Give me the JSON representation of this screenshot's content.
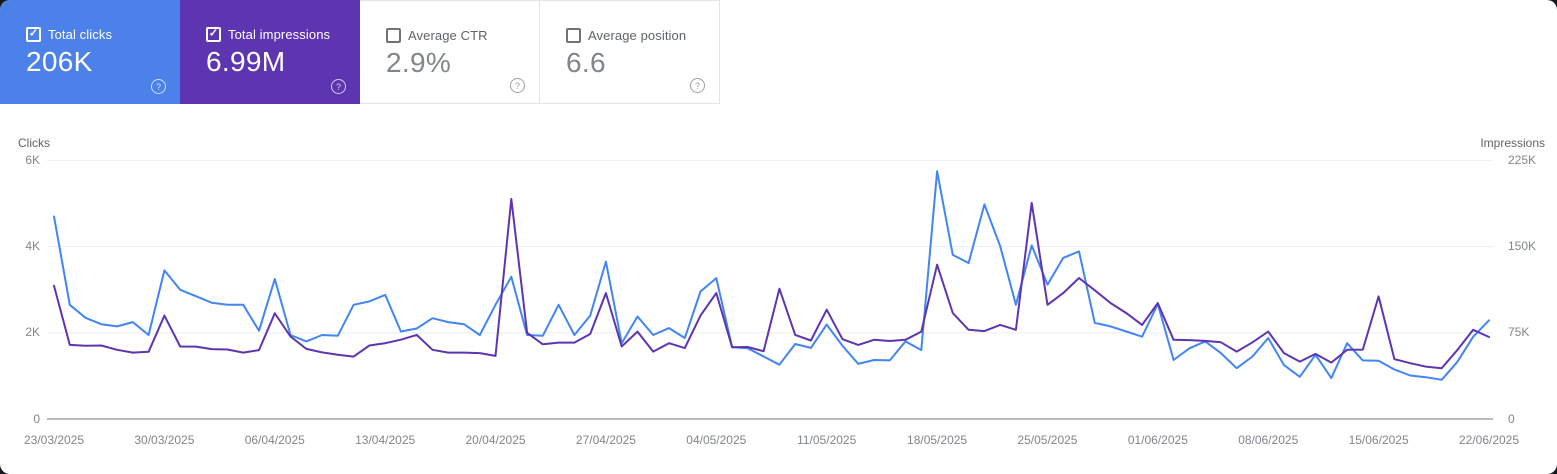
{
  "cards": [
    {
      "label": "Total clicks",
      "value": "206K",
      "checked": true,
      "selected": true,
      "bg": "#4b81e9"
    },
    {
      "label": "Total impressions",
      "value": "6.99M",
      "checked": true,
      "selected": true,
      "bg": "#5e35b1"
    },
    {
      "label": "Average CTR",
      "value": "2.9%",
      "checked": false,
      "selected": false,
      "bg": "#ffffff"
    },
    {
      "label": "Average position",
      "value": "6.6",
      "checked": false,
      "selected": false,
      "bg": "#ffffff"
    }
  ],
  "help_icon_glyph": "?",
  "checkbox_check_glyph": "✓",
  "chart_data": {
    "type": "line",
    "num_points": 92,
    "x_tick_labels": [
      "23/03/2025",
      "30/03/2025",
      "06/04/2025",
      "13/04/2025",
      "20/04/2025",
      "27/04/2025",
      "04/05/2025",
      "11/05/2025",
      "18/05/2025",
      "25/05/2025",
      "01/06/2025",
      "08/06/2025",
      "15/06/2025",
      "22/06/2025"
    ],
    "x_tick_days": [
      0,
      7,
      14,
      21,
      28,
      35,
      42,
      49,
      56,
      63,
      70,
      77,
      84,
      91
    ],
    "left_axis": {
      "title": "Clicks",
      "ticks": [
        "6K",
        "4K",
        "2K",
        "0"
      ],
      "max": 6000,
      "min": 0
    },
    "right_axis": {
      "title": "Impressions",
      "ticks": [
        "225K",
        "150K",
        "75K",
        "0"
      ],
      "max": 225000,
      "min": 0
    },
    "grid": true,
    "legend_position": "none",
    "colors": {
      "gridline": "#eceef0",
      "baseline": "#b9bdc2",
      "clicks": "#4285f4",
      "impressions": "#5e35b1"
    },
    "series": [
      {
        "name": "Total clicks",
        "axis": "left",
        "color": "#4285f4",
        "values": [
          4700,
          2650,
          2350,
          2200,
          2150,
          2250,
          1950,
          3450,
          3000,
          2850,
          2700,
          2650,
          2650,
          2050,
          3250,
          1950,
          1800,
          1950,
          1930,
          2650,
          2730,
          2880,
          2030,
          2100,
          2340,
          2250,
          2200,
          1950,
          2650,
          3300,
          1950,
          1930,
          2650,
          1950,
          2400,
          3650,
          1760,
          2380,
          1950,
          2110,
          1880,
          2960,
          3270,
          1670,
          1640,
          1450,
          1260,
          1740,
          1650,
          2190,
          1700,
          1280,
          1370,
          1360,
          1800,
          1600,
          5750,
          3810,
          3620,
          4980,
          4010,
          2650,
          4030,
          3120,
          3740,
          3890,
          2230,
          2150,
          2030,
          1910,
          2670,
          1370,
          1640,
          1800,
          1530,
          1180,
          1450,
          1880,
          1250,
          980,
          1490,
          950,
          1760,
          1360,
          1350,
          1150,
          1010,
          970,
          910,
          1330,
          1910,
          2290
        ]
      },
      {
        "name": "Total impressions",
        "axis": "right",
        "color": "#5e35b1",
        "values": [
          116000,
          64500,
          63800,
          64000,
          60200,
          57800,
          58500,
          90000,
          63100,
          63000,
          60800,
          60500,
          57800,
          60000,
          92000,
          71800,
          61000,
          58000,
          56000,
          54300,
          64000,
          66000,
          69000,
          73200,
          60200,
          57800,
          57800,
          57400,
          54900,
          191600,
          75000,
          65000,
          66500,
          66500,
          74000,
          109600,
          63100,
          76100,
          58700,
          66000,
          61700,
          90000,
          109600,
          62500,
          62700,
          59000,
          113400,
          73200,
          68300,
          95100,
          69500,
          64500,
          68900,
          67900,
          68900,
          76100,
          134300,
          92200,
          77600,
          76500,
          81900,
          77600,
          188100,
          99400,
          109600,
          122700,
          112000,
          101000,
          92200,
          81900,
          100900,
          68900,
          68700,
          68000,
          66800,
          58700,
          66800,
          76100,
          57400,
          50000,
          56700,
          49100,
          60200,
          60400,
          106700,
          52100,
          48600,
          45600,
          44200,
          60200,
          77600,
          71400
        ]
      }
    ]
  }
}
